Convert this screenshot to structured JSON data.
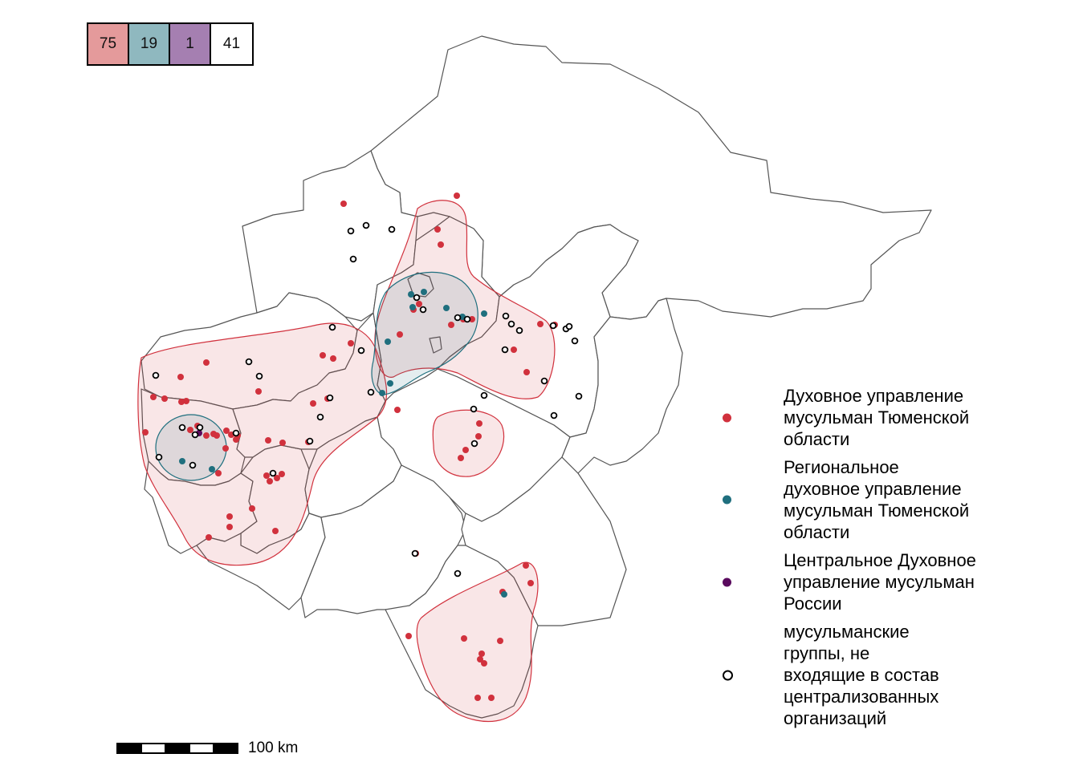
{
  "colors": {
    "dumto": "#d1313d",
    "rdumto": "#1f6f7e",
    "cdum": "#5a0a5e",
    "independent": "#ffffff",
    "boundary": "#555555"
  },
  "counts": [
    {
      "value": "75",
      "color": "#e49a9b"
    },
    {
      "value": "19",
      "color": "#8fb8bf"
    },
    {
      "value": "1",
      "color": "#a57fb1"
    },
    {
      "value": "41",
      "color": "#ffffff"
    }
  ],
  "legend": [
    {
      "label": "Духовное управление\nмусульман Тюменской\nобласти",
      "color": "#d1313d",
      "outline": false
    },
    {
      "label": "Региональное\nдуховное управление\nмусульман Тюменской\nобласти",
      "color": "#1f6f7e",
      "outline": false
    },
    {
      "label": "Центральное Духовное\nуправление мусульман\nРоссии",
      "color": "#5a0a5e",
      "outline": false
    },
    {
      "label": "мусульманские\nгруппы, не\nвходящие в состав\nцентрализованных\nорганизаций",
      "color": "#ffffff",
      "outline": true
    }
  ],
  "scale_bar": {
    "label": "100 km"
  }
}
